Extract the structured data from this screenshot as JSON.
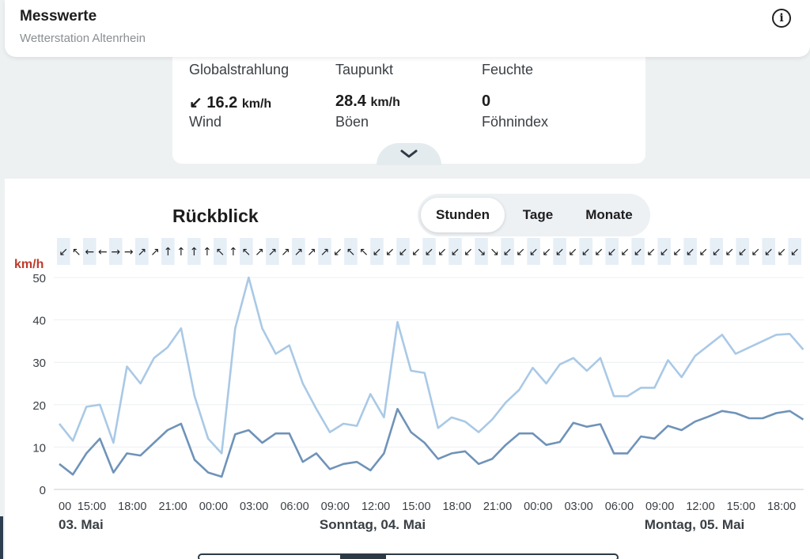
{
  "header": {
    "title": "Messwerte",
    "subtitle": "Wetterstation Altenrhein",
    "info_label": "i"
  },
  "measurements": {
    "top_labels": [
      "Globalstrahlung",
      "Taupunkt",
      "Feuchte"
    ],
    "wind": {
      "arrow": "↙",
      "value": "16.2",
      "unit": "km/h",
      "label": "Wind"
    },
    "gusts": {
      "value": "28.4",
      "unit": "km/h",
      "label": "Böen"
    },
    "foehn": {
      "value": "0",
      "label": "Föhnindex"
    }
  },
  "retro": {
    "title": "Rückblick",
    "tabs": [
      "Stunden",
      "Tage",
      "Monate"
    ],
    "active_tab": "Stunden"
  },
  "colors": {
    "wind": "#6f93b9",
    "gusts": "#a9c9e6",
    "unit_red": "#c0392b",
    "strip": "#e6eef6"
  },
  "chart_data": {
    "type": "line",
    "ylabel": "km/h",
    "ylim": [
      0,
      50
    ],
    "yticks": [
      0,
      10,
      20,
      30,
      40,
      50
    ],
    "xtick_labels": [
      "00",
      "15:00",
      "18:00",
      "21:00",
      "00:00",
      "03:00",
      "06:00",
      "09:00",
      "12:00",
      "15:00",
      "18:00",
      "21:00",
      "00:00",
      "03:00",
      "06:00",
      "09:00",
      "12:00",
      "15:00",
      "18:00"
    ],
    "date_labels": [
      "03. Mai",
      "Sonntag, 04. Mai",
      "Montag, 05. Mai"
    ],
    "wind_directions": [
      "↙",
      "↖",
      "←",
      "←",
      "→",
      "→",
      "↗",
      "↗",
      "↑",
      "↑",
      "↑",
      "↑",
      "↖",
      "↑",
      "↖",
      "↗",
      "↗",
      "↗",
      "↗",
      "↗",
      "↗",
      "↙",
      "↖",
      "↖",
      "↙",
      "↙",
      "↙",
      "↙",
      "↙",
      "↙",
      "↙",
      "↙",
      "↘",
      "↘",
      "↙",
      "↙",
      "↙",
      "↙",
      "↙",
      "↙",
      "↙",
      "↙",
      "↙",
      "↙",
      "↙",
      "↙",
      "↙",
      "↙",
      "↙",
      "↙",
      "↙",
      "↙",
      "↙",
      "↙",
      "↙",
      "↙",
      "↙"
    ],
    "grid": true,
    "series": [
      {
        "name": "Böen",
        "values": [
          15.5,
          11.5,
          19.5,
          20,
          11,
          29,
          25,
          31,
          33.5,
          38,
          22,
          12,
          8.5,
          38,
          50,
          38,
          32,
          34,
          25,
          19,
          13.5,
          15.5,
          15,
          22.5,
          17,
          39.5,
          28,
          27.5,
          14.5,
          17,
          16,
          13.5,
          16.5,
          20.5,
          23.5,
          28.7,
          25,
          29.5,
          31,
          28,
          31,
          22,
          22,
          24,
          24,
          30.5,
          26.5,
          31.5,
          34,
          36.5,
          32,
          33.5,
          35,
          36.5,
          36.7,
          33
        ]
      },
      {
        "name": "Wind",
        "values": [
          6,
          3.5,
          8.5,
          12,
          4,
          8.5,
          8,
          11,
          14,
          15.5,
          7,
          4,
          3,
          13,
          14,
          11,
          13.2,
          13.2,
          6.5,
          8.5,
          4.8,
          6,
          6.5,
          4.5,
          8.5,
          19,
          13.5,
          11,
          7.2,
          8.5,
          9,
          6,
          7.2,
          10.5,
          13.2,
          13.2,
          10.5,
          11.2,
          15.7,
          14.8,
          15.4,
          8.5,
          8.5,
          12.5,
          12,
          15,
          14,
          16,
          17.2,
          18.5,
          18,
          16.8,
          16.8,
          18,
          18.5,
          16.5
        ]
      }
    ]
  }
}
